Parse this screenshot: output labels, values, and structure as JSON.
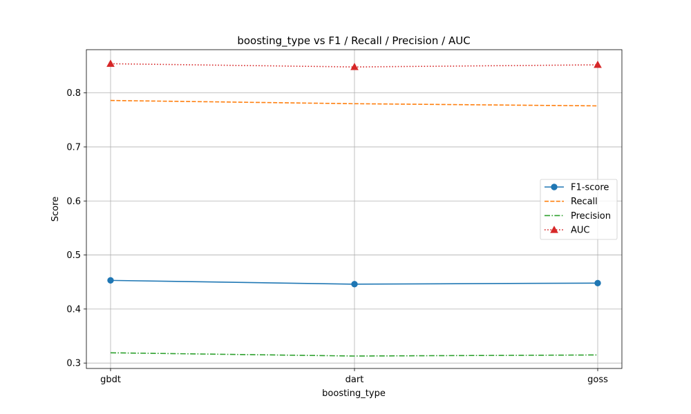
{
  "chart_data": {
    "type": "line",
    "title": "boosting_type vs F1 / Recall / Precision / AUC",
    "xlabel": "boosting_type",
    "ylabel": "Score",
    "categories": [
      "gbdt",
      "dart",
      "goss"
    ],
    "ylim": [
      0.29,
      0.88
    ],
    "yticks": [
      0.3,
      0.4,
      0.5,
      0.6,
      0.7,
      0.8
    ],
    "ytick_labels": [
      "0.3",
      "0.4",
      "0.5",
      "0.6",
      "0.7",
      "0.8"
    ],
    "grid": true,
    "legend_position": "center-right",
    "series": [
      {
        "name": "F1-score",
        "values": [
          0.453,
          0.446,
          0.448
        ],
        "color": "#1f77b4",
        "linestyle": "solid",
        "marker": "circle"
      },
      {
        "name": "Recall",
        "values": [
          0.786,
          0.78,
          0.776
        ],
        "color": "#ff7f0e",
        "linestyle": "dashed",
        "marker": "none"
      },
      {
        "name": "Precision",
        "values": [
          0.319,
          0.313,
          0.315
        ],
        "color": "#2ca02c",
        "linestyle": "dashdot",
        "marker": "none"
      },
      {
        "name": "AUC",
        "values": [
          0.854,
          0.848,
          0.852
        ],
        "color": "#d62728",
        "linestyle": "dotted",
        "marker": "triangle"
      }
    ]
  }
}
